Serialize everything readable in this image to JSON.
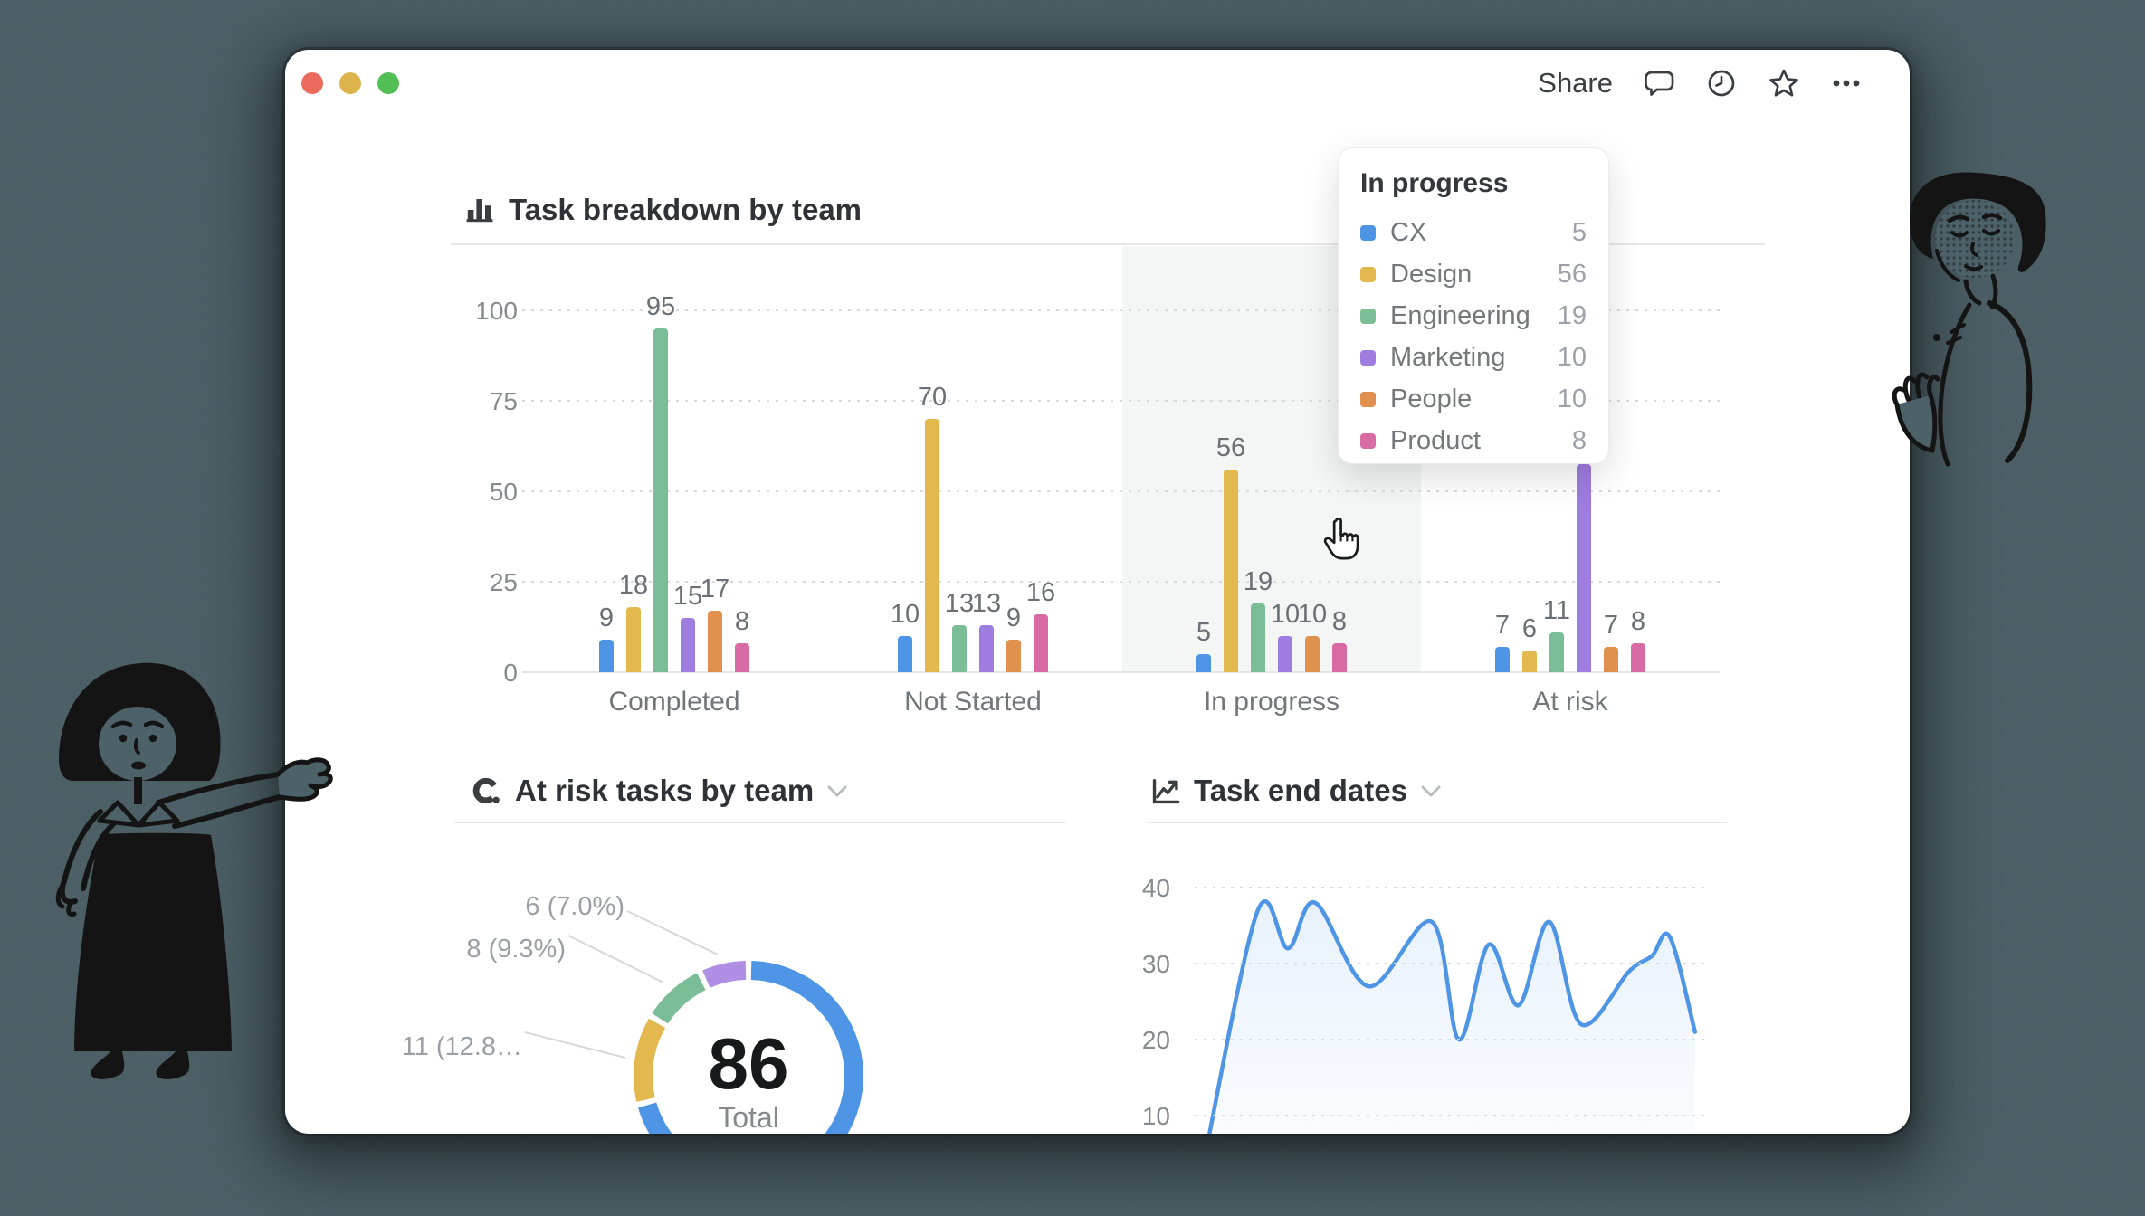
{
  "window_chrome": {
    "share_label": "Share",
    "toolbar_icons": [
      "comment-icon",
      "history-clock-icon",
      "star-icon",
      "more-ellipsis-icon"
    ],
    "traffic_lights": {
      "close": "#EA6A5C",
      "minimize": "#DDB44C",
      "zoom": "#52BE56"
    }
  },
  "chart_data": [
    {
      "type": "bar",
      "title": "Task breakdown by team",
      "icon": "bar-chart-icon",
      "y_ticks": [
        0,
        25,
        50,
        75,
        100
      ],
      "ylim": [
        0,
        100
      ],
      "grid": "dotted-horizontal",
      "categories": [
        "Completed",
        "Not Started",
        "In progress",
        "At risk"
      ],
      "highlighted_category": "In progress",
      "series": [
        {
          "name": "CX",
          "color": "#4E95E6",
          "values": [
            9,
            10,
            5,
            7
          ]
        },
        {
          "name": "Design",
          "color": "#E2B84F",
          "values": [
            18,
            70,
            56,
            6
          ]
        },
        {
          "name": "Engineering",
          "color": "#7ABD96",
          "values": [
            95,
            13,
            19,
            11
          ]
        },
        {
          "name": "Marketing",
          "color": "#9F7CE0",
          "values": [
            15,
            13,
            10,
            null
          ]
        },
        {
          "name": "People",
          "color": "#E0914E",
          "values": [
            17,
            9,
            10,
            7
          ]
        },
        {
          "name": "Product",
          "color": "#D96BA4",
          "values": [
            8,
            16,
            8,
            8
          ]
        }
      ],
      "hidden_bar": {
        "series": "Marketing",
        "category": "At risk",
        "visible_height_units": 57.5,
        "note": "value label hidden behind hover tooltip; bar top cut off by tooltip"
      }
    },
    {
      "type": "donut",
      "title": "At risk tasks by team",
      "icon": "donut-chart-icon",
      "center_value": "86",
      "center_label": "Total",
      "total": 86,
      "slices": [
        {
          "value": 61,
          "color": "#4E95E6",
          "callout": ""
        },
        {
          "value": 11,
          "color": "#E2B84F",
          "callout": "11 (12.8…"
        },
        {
          "value": 8,
          "color": "#7ABD96",
          "callout": "8 (9.3%)"
        },
        {
          "value": 6,
          "color": "#AF8FE4",
          "callout": "6 (7.0%)"
        }
      ]
    },
    {
      "type": "line",
      "title": "Task end dates",
      "icon": "line-chart-icon",
      "y_ticks": [
        10,
        20,
        30,
        40
      ],
      "ylim": [
        5,
        42
      ],
      "grid": "dotted-horizontal",
      "line_color": "#4E95E6",
      "points": [
        [
          0.021,
          5
        ],
        [
          0.123,
          37
        ],
        [
          0.182,
          32
        ],
        [
          0.235,
          38
        ],
        [
          0.339,
          27
        ],
        [
          0.462,
          35.5
        ],
        [
          0.515,
          20
        ],
        [
          0.573,
          32.5
        ],
        [
          0.631,
          24.5
        ],
        [
          0.691,
          35.5
        ],
        [
          0.753,
          22
        ],
        [
          0.847,
          29
        ],
        [
          0.891,
          31
        ],
        [
          0.926,
          33.5
        ],
        [
          0.975,
          21
        ]
      ]
    }
  ],
  "tooltip": {
    "title": "In progress",
    "rows": [
      {
        "label": "CX",
        "value": 5,
        "color": "#4E95E6"
      },
      {
        "label": "Design",
        "value": 56,
        "color": "#E2B84F"
      },
      {
        "label": "Engineering",
        "value": 19,
        "color": "#7ABD96"
      },
      {
        "label": "Marketing",
        "value": 10,
        "color": "#9F7CE0"
      },
      {
        "label": "People",
        "value": 10,
        "color": "#E0914E"
      },
      {
        "label": "Product",
        "value": 8,
        "color": "#D96BA4"
      }
    ]
  },
  "cursor": {
    "type": "pointing-hand"
  }
}
